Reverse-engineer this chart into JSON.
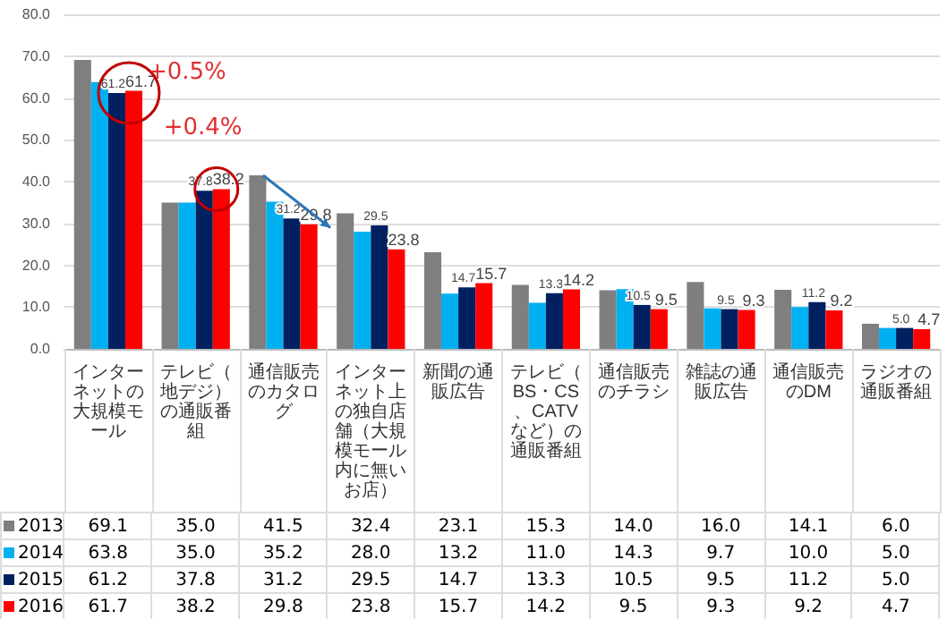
{
  "chart_data": {
    "type": "bar",
    "categories": [
      "インターネットの大規模モール",
      "テレビ（地デジ）の通販番組",
      "通信販売のカタログ",
      "インターネット上の独自店舗（大規模モール内に無いお店）",
      "新聞の通販広告",
      "テレビ（BS・CS、CATVなど）の通販番組",
      "通信販売のチラシ",
      "雑誌の通販広告",
      "通信販売のDM",
      "ラジオの通販番組"
    ],
    "series": [
      {
        "name": "2013",
        "color": "#7f7f7f",
        "values": [
          69.1,
          35.0,
          41.5,
          32.4,
          23.1,
          15.3,
          14.0,
          16.0,
          14.1,
          6.0
        ],
        "value_labels": [
          "69.1",
          "35.0",
          "41.5",
          "32.4",
          "23.1",
          "15.3",
          "14.0",
          "16.0",
          "14.1",
          "6.0"
        ]
      },
      {
        "name": "2014",
        "color": "#00b0f0",
        "values": [
          63.8,
          35.0,
          35.2,
          28.0,
          13.2,
          11.0,
          14.3,
          9.7,
          10.0,
          5.0
        ],
        "value_labels": [
          "63.8",
          "35.0",
          "35.2",
          "28.0",
          "13.2",
          "11.0",
          "14.3",
          "9.7",
          "10.0",
          "5.0"
        ]
      },
      {
        "name": "2015",
        "color": "#002060",
        "values": [
          61.2,
          37.8,
          31.2,
          29.5,
          14.7,
          13.3,
          10.5,
          9.5,
          11.2,
          5.0
        ],
        "value_labels": [
          "61.2",
          "37.8",
          "31.2",
          "29.5",
          "14.7",
          "13.3",
          "10.5",
          "9.5",
          "11.2",
          "5.0"
        ]
      },
      {
        "name": "2016",
        "color": "#ff0000",
        "values": [
          61.7,
          38.2,
          29.8,
          23.8,
          15.7,
          14.2,
          9.5,
          9.3,
          9.2,
          4.7
        ],
        "value_labels": [
          "61.7",
          "38.2",
          "29.8",
          "23.8",
          "15.7",
          "14.2",
          "9.5",
          "9.3",
          "9.2",
          "4.7"
        ]
      }
    ],
    "ylim": [
      0,
      80
    ],
    "yticks": [
      {
        "value": 0,
        "label": "0.0"
      },
      {
        "value": 10,
        "label": "10.0"
      },
      {
        "value": 20,
        "label": "20.0"
      },
      {
        "value": 30,
        "label": "30.0"
      },
      {
        "value": 40,
        "label": "40.0"
      },
      {
        "value": 50,
        "label": "50.0"
      },
      {
        "value": 60,
        "label": "60.0"
      },
      {
        "value": 70,
        "label": "70.0"
      },
      {
        "value": 80,
        "label": "80.0"
      }
    ],
    "grid": "y",
    "legend": "bottom",
    "annotations": [
      {
        "text": "+0.5%",
        "x": "インターネットの大規模モール",
        "y": 66
      },
      "+0.4%"
    ]
  }
}
